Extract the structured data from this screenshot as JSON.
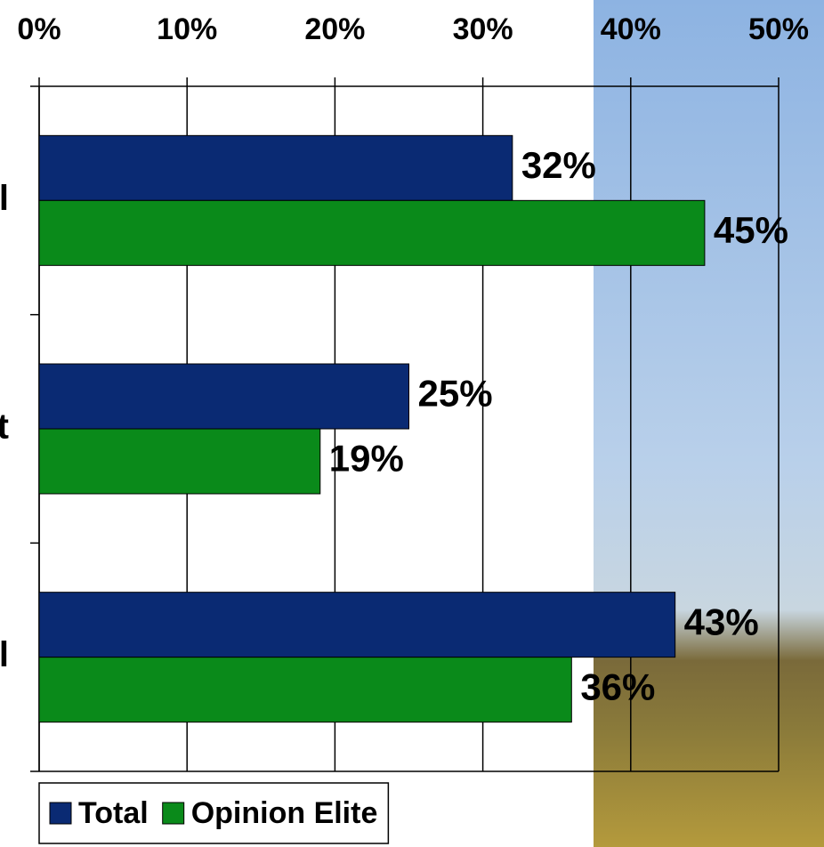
{
  "chart_data": {
    "type": "hbar",
    "categories": [
      "l",
      "t",
      "l"
    ],
    "series": [
      {
        "name": "Total",
        "color": "#0a2a73",
        "values": [
          32,
          25,
          43
        ],
        "value_labels": [
          "32%",
          "25%",
          "43%"
        ]
      },
      {
        "name": "Opinion Elite",
        "color": "#0a8a1a",
        "values": [
          45,
          19,
          36
        ],
        "value_labels": [
          "45%",
          "19%",
          "36%"
        ]
      }
    ],
    "xlim": [
      0,
      50
    ],
    "xticks": [
      {
        "value": 0,
        "label": "0%"
      },
      {
        "value": 10,
        "label": "10%"
      },
      {
        "value": 20,
        "label": "20%"
      },
      {
        "value": 30,
        "label": "30%"
      },
      {
        "value": 40,
        "label": "40%"
      },
      {
        "value": 50,
        "label": "50%"
      }
    ],
    "grid": true,
    "legend": "bottom-left"
  }
}
